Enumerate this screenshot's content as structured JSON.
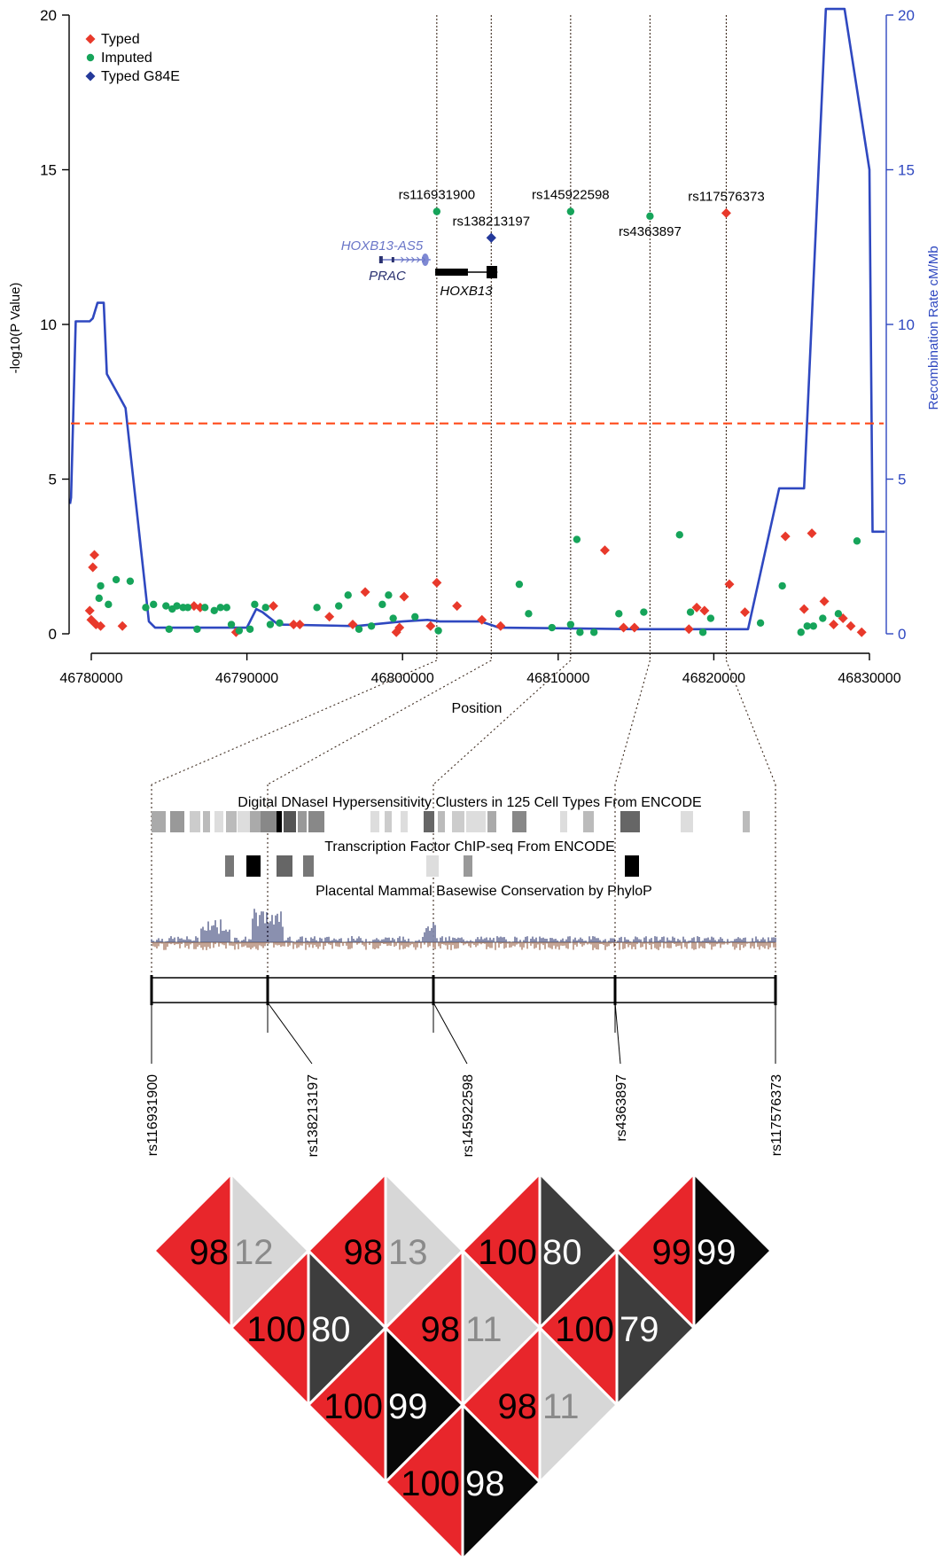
{
  "chart_data": [
    {
      "type": "scatter",
      "xlabel": "Position",
      "ylabel": "-log10(P Value)",
      "y2label": "Recombination Rate cM/Mb",
      "xlim": [
        46780000,
        46830000
      ],
      "ylim": [
        0,
        20
      ],
      "y2lim": [
        0,
        20
      ],
      "x_ticks": [
        "46780000",
        "46790000",
        "46800000",
        "46810000",
        "46820000",
        "46830000"
      ],
      "y_ticks": [
        "0",
        "5",
        "10",
        "15",
        "20"
      ],
      "y2_ticks": [
        "0",
        "5",
        "10",
        "15",
        "20"
      ],
      "significance_line": 6.8,
      "legend": {
        "placement": "top-left",
        "entries": [
          {
            "label": "Typed",
            "color": "#e8392b",
            "marker": "diamond"
          },
          {
            "label": "Imputed",
            "color": "#16a45a",
            "marker": "circle"
          },
          {
            "label": "Typed G84E",
            "color": "#24399a",
            "marker": "diamond"
          }
        ]
      },
      "series": [
        {
          "name": "Typed",
          "color": "#e8392b",
          "marker": "diamond",
          "points": [
            [
              46779900,
              0.75
            ],
            [
              46780200,
              2.55
            ],
            [
              46780100,
              2.15
            ],
            [
              46780000,
              0.45
            ],
            [
              46780300,
              0.3
            ],
            [
              46780600,
              0.25
            ],
            [
              46782000,
              0.25
            ],
            [
              46786600,
              0.9
            ],
            [
              46787000,
              0.85
            ],
            [
              46789300,
              0.05
            ],
            [
              46791700,
              0.9
            ],
            [
              46793000,
              0.3
            ],
            [
              46793400,
              0.3
            ],
            [
              46795300,
              0.55
            ],
            [
              46796800,
              0.3
            ],
            [
              46797600,
              1.35
            ],
            [
              46799800,
              0.2
            ],
            [
              46799600,
              0.05
            ],
            [
              46800100,
              1.2
            ],
            [
              46801800,
              0.25
            ],
            [
              46802200,
              1.65
            ],
            [
              46803500,
              0.9
            ],
            [
              46805100,
              0.45
            ],
            [
              46806300,
              0.25
            ],
            [
              46813000,
              2.7
            ],
            [
              46814200,
              0.2
            ],
            [
              46814900,
              0.2
            ],
            [
              46818900,
              0.85
            ],
            [
              46819400,
              0.75
            ],
            [
              46821000,
              1.6
            ],
            [
              46822000,
              0.7
            ],
            [
              46824600,
              3.15
            ],
            [
              46825800,
              0.8
            ],
            [
              46826300,
              3.25
            ],
            [
              46827100,
              1.05
            ],
            [
              46827700,
              0.3
            ],
            [
              46828300,
              0.5
            ],
            [
              46828800,
              0.25
            ],
            [
              46829500,
              0.05
            ],
            [
              46818400,
              0.15
            ]
          ]
        },
        {
          "name": "Imputed",
          "color": "#16a45a",
          "marker": "circle",
          "points": [
            [
              46780600,
              1.55
            ],
            [
              46780500,
              1.15
            ],
            [
              46781100,
              0.95
            ],
            [
              46781600,
              1.75
            ],
            [
              46782500,
              1.7
            ],
            [
              46783500,
              0.85
            ],
            [
              46784000,
              0.95
            ],
            [
              46784800,
              0.9
            ],
            [
              46785200,
              0.8
            ],
            [
              46785500,
              0.9
            ],
            [
              46785900,
              0.85
            ],
            [
              46786200,
              0.85
            ],
            [
              46787300,
              0.85
            ],
            [
              46787900,
              0.75
            ],
            [
              46788300,
              0.85
            ],
            [
              46788700,
              0.85
            ],
            [
              46789000,
              0.3
            ],
            [
              46789500,
              0.1
            ],
            [
              46790200,
              0.15
            ],
            [
              46790500,
              0.95
            ],
            [
              46791200,
              0.85
            ],
            [
              46792100,
              0.35
            ],
            [
              46794500,
              0.85
            ],
            [
              46795900,
              0.9
            ],
            [
              46796500,
              1.25
            ],
            [
              46798700,
              0.95
            ],
            [
              46799100,
              1.25
            ],
            [
              46799400,
              0.5
            ],
            [
              46802300,
              0.1
            ],
            [
              46807500,
              1.6
            ],
            [
              46808100,
              0.65
            ],
            [
              46809600,
              0.2
            ],
            [
              46810800,
              0.3
            ],
            [
              46811200,
              3.05
            ],
            [
              46811400,
              0.05
            ],
            [
              46812300,
              0.05
            ],
            [
              46813900,
              0.65
            ],
            [
              46815500,
              0.7
            ],
            [
              46817800,
              3.2
            ],
            [
              46818500,
              0.7
            ],
            [
              46819800,
              0.5
            ],
            [
              46819300,
              0.05
            ],
            [
              46823000,
              0.35
            ],
            [
              46824400,
              1.55
            ],
            [
              46825600,
              0.05
            ],
            [
              46826000,
              0.25
            ],
            [
              46826400,
              0.25
            ],
            [
              46827000,
              0.5
            ],
            [
              46828000,
              0.65
            ],
            [
              46829200,
              3.0
            ],
            [
              46785000,
              0.15
            ],
            [
              46791500,
              0.3
            ],
            [
              46797200,
              0.15
            ],
            [
              46786800,
              0.15
            ],
            [
              46798000,
              0.25
            ],
            [
              46800800,
              0.55
            ]
          ]
        },
        {
          "name": "Typed G84E",
          "color": "#24399a",
          "marker": "diamond",
          "points": [
            [
              46805700,
              12.8
            ]
          ]
        }
      ],
      "highlighted_snps": [
        {
          "label": "rs116931900",
          "x": 46802200,
          "y": 13.65,
          "marker": "circle",
          "color": "#16a45a"
        },
        {
          "label": "rs138213197",
          "x": 46805700,
          "y": 12.8,
          "marker": "diamond",
          "color": "#24399a"
        },
        {
          "label": "rs145922598",
          "x": 46810800,
          "y": 13.65,
          "marker": "circle",
          "color": "#16a45a"
        },
        {
          "label": "rs4363897",
          "x": 46815900,
          "y": 13.5,
          "marker": "circle",
          "color": "#16a45a"
        },
        {
          "label": "rs117576373",
          "x": 46820800,
          "y": 13.6,
          "marker": "diamond",
          "color": "#e8392b"
        }
      ],
      "recombination_rate": {
        "color": "#2f48c0",
        "points": [
          [
            46778400,
            4.2
          ],
          [
            46778700,
            4.4
          ],
          [
            46779000,
            10.1
          ],
          [
            46779900,
            10.1
          ],
          [
            46780100,
            10.2
          ],
          [
            46780400,
            10.7
          ],
          [
            46780800,
            10.7
          ],
          [
            46781000,
            8.4
          ],
          [
            46782200,
            7.3
          ],
          [
            46783700,
            0.4
          ],
          [
            46784100,
            0.2
          ],
          [
            46790000,
            0.2
          ],
          [
            46790600,
            0.8
          ],
          [
            46791000,
            0.7
          ],
          [
            46792000,
            0.3
          ],
          [
            46797000,
            0.25
          ],
          [
            46800000,
            0.4
          ],
          [
            46801600,
            0.45
          ],
          [
            46802400,
            0.4
          ],
          [
            46805000,
            0.4
          ],
          [
            46806200,
            0.2
          ],
          [
            46815000,
            0.15
          ],
          [
            46822200,
            0.15
          ],
          [
            46824200,
            4.7
          ],
          [
            46825800,
            4.7
          ],
          [
            46827200,
            20.2
          ],
          [
            46828400,
            20.2
          ],
          [
            46830000,
            15.0
          ],
          [
            46830200,
            3.3
          ],
          [
            46831000,
            3.3
          ]
        ]
      },
      "genes": [
        {
          "name": "HOXB13-AS5",
          "color": "#6a76c8",
          "start": 46798500,
          "end": 46801800,
          "strand": "+"
        },
        {
          "name": "PRAC",
          "color": "#2a3170",
          "start": 46798500,
          "end": 46799300,
          "strand": "-"
        },
        {
          "name": "HOXB13",
          "color": "#000000",
          "start": 46802100,
          "end": 46806100,
          "strand": "-"
        }
      ]
    },
    {
      "type": "annotation-tracks",
      "tracks": [
        {
          "title": "Digital DNaseI Hypersensitivity Clusters in 125 Cell Types From ENCODE"
        },
        {
          "title": "Transcription Factor ChIP-seq From ENCODE"
        },
        {
          "title": "Placental Mammal Basewise Conservation by PhyloP"
        }
      ],
      "snp_labels": [
        "rs116931900",
        "rs138213197",
        "rs145922598",
        "rs4363897",
        "rs117576373"
      ]
    },
    {
      "type": "heatmap",
      "title": "",
      "cells": [
        {
          "row": 0,
          "col": 0,
          "left": "98",
          "right": "12"
        },
        {
          "row": 0,
          "col": 1,
          "left": "98",
          "right": "13"
        },
        {
          "row": 0,
          "col": 2,
          "left": "100",
          "right": "80"
        },
        {
          "row": 0,
          "col": 3,
          "left": "99",
          "right": "99"
        },
        {
          "row": 1,
          "col": 0,
          "left": "100",
          "right": "80"
        },
        {
          "row": 1,
          "col": 1,
          "left": "98",
          "right": "11"
        },
        {
          "row": 1,
          "col": 2,
          "left": "100",
          "right": "79"
        },
        {
          "row": 2,
          "col": 0,
          "left": "100",
          "right": "99"
        },
        {
          "row": 2,
          "col": 1,
          "left": "98",
          "right": "11"
        },
        {
          "row": 3,
          "col": 0,
          "left": "100",
          "right": "98"
        }
      ],
      "colors": {
        "left": "#e8262b",
        "right_by_value": "r2 shade: 11-13 light grey, 79-80 dark grey, 98-99 black"
      }
    }
  ]
}
